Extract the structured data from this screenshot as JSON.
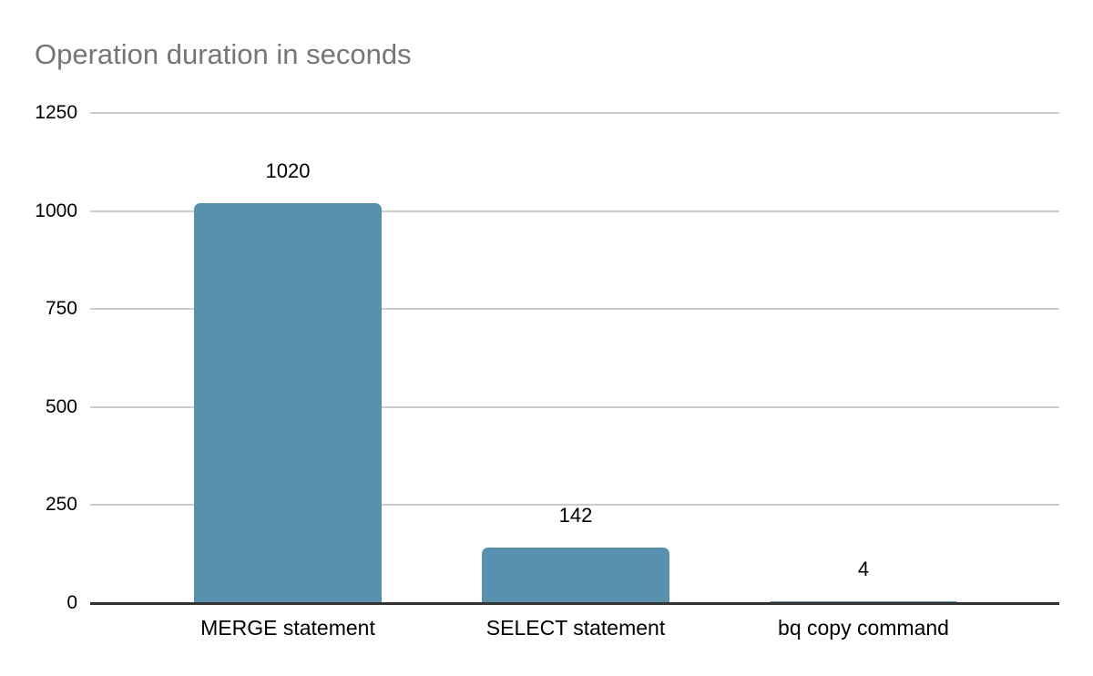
{
  "chart_data": {
    "type": "bar",
    "title": "Operation duration in seconds",
    "categories": [
      "MERGE statement",
      "SELECT statement",
      "bq copy command"
    ],
    "values": [
      1020,
      142,
      4
    ],
    "data_labels": [
      "1020",
      "142",
      "4"
    ],
    "xlabel": "",
    "ylabel": "",
    "ylim": [
      0,
      1250
    ],
    "yticks": [
      0,
      250,
      500,
      750,
      1000,
      1250
    ],
    "grid": "horizontal",
    "legend_position": "none",
    "colors": {
      "bar": "#5891AD",
      "title_text": "#757575",
      "axis_text": "#000000",
      "gridline": "#cccccc",
      "axis_line": "#333333",
      "background": "#ffffff"
    }
  }
}
